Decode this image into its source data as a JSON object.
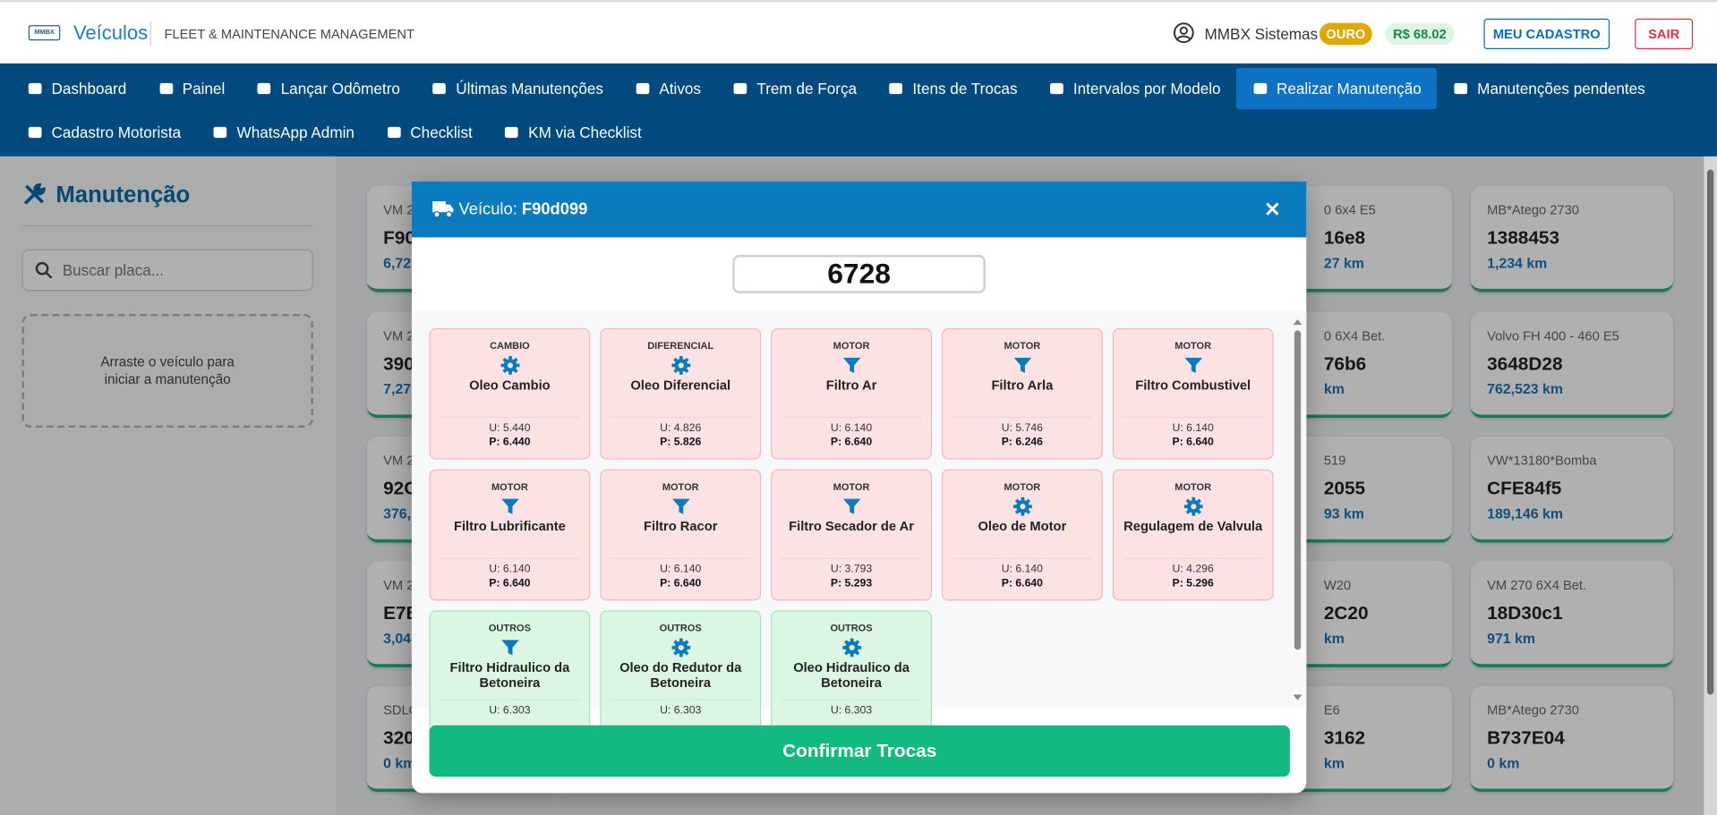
{
  "header": {
    "logo": "MMBX",
    "title": "Veículos",
    "subtitle": "FLEET & MAINTENANCE MANAGEMENT",
    "user": "MMBX Sistemas",
    "tier": "OURO",
    "balance": "R$ 68.02",
    "buttons": [
      "MEU CADASTRO",
      "SAIR"
    ]
  },
  "nav": {
    "active_index": 8,
    "rows": [
      [
        "Dashboard",
        "Painel",
        "Lançar Odômetro",
        "Últimas Manutenções",
        "Ativos",
        "Trem de Força",
        "Itens de Trocas",
        "Intervalos por Modelo",
        "Realizar Manutenção",
        "Manutenções pendentes"
      ],
      [
        "Cadastro Motorista",
        "WhatsApp Admin",
        "Checklist",
        "KM via Checklist"
      ]
    ]
  },
  "sidebar": {
    "title": "Manutenção",
    "search_placeholder": "Buscar placa...",
    "dropzone": "Arraste o veículo para iniciar a manutenção"
  },
  "background_left": [
    {
      "model": "VM 2",
      "plate": "F90",
      "km": "6,72"
    },
    {
      "model": "VM 2",
      "plate": "390",
      "km": "7,27"
    },
    {
      "model": "VM 2",
      "plate": "92C",
      "km": "376,"
    },
    {
      "model": "VM 2",
      "plate": "E7B",
      "km": "3,04"
    },
    {
      "model": "SDLG",
      "plate": "320",
      "km": "0 km"
    }
  ],
  "background_mid": [
    {
      "model": "0 6x4 E5",
      "plate": "16e8",
      "km": "27 km"
    },
    {
      "model": "0 6X4 Bet.",
      "plate": "76b6",
      "km": "km"
    },
    {
      "model": "519",
      "plate": "2055",
      "km": "93 km"
    },
    {
      "model": "W20",
      "plate": "2C20",
      "km": "km"
    },
    {
      "model": "E6",
      "plate": "3162",
      "km": "km"
    }
  ],
  "background_right": [
    {
      "model": "MB*Atego 2730",
      "plate": "1388453",
      "km": "1,234 km"
    },
    {
      "model": "Volvo FH 400 - 460 E5",
      "plate": "3648D28",
      "km": "762,523 km"
    },
    {
      "model": "VW*13180*Bomba",
      "plate": "CFE84f5",
      "km": "189,146 km"
    },
    {
      "model": "VM 270 6X4 Bet.",
      "plate": "18D30c1",
      "km": "971 km"
    },
    {
      "model": "MB*Atego 2730",
      "plate": "B737E04",
      "km": "0 km"
    }
  ],
  "modal": {
    "label": "Veículo:",
    "plate": "F90d099",
    "odometer": "6728",
    "confirm": "Confirmar Trocas",
    "items": [
      {
        "category": "CAMBIO",
        "icon": "gear",
        "name": "Oleo Cambio",
        "last": "U: 5.440",
        "planned": "P: 6.440",
        "color": "#fde2e4"
      },
      {
        "category": "DIFERENCIAL",
        "icon": "gear",
        "name": "Oleo Diferencial",
        "last": "U: 4.826",
        "planned": "P: 5.826",
        "color": "#fde2e4"
      },
      {
        "category": "MOTOR",
        "icon": "filter",
        "name": "Filtro Ar",
        "last": "U: 6.140",
        "planned": "P: 6.640",
        "color": "#fde2e4"
      },
      {
        "category": "MOTOR",
        "icon": "filter",
        "name": "Filtro Arla",
        "last": "U: 5.746",
        "planned": "P: 6.246",
        "color": "#fde2e4"
      },
      {
        "category": "MOTOR",
        "icon": "filter",
        "name": "Filtro Combustivel",
        "last": "U: 6.140",
        "planned": "P: 6.640",
        "color": "#fde2e4"
      },
      {
        "category": "MOTOR",
        "icon": "filter",
        "name": "Filtro Lubrificante",
        "last": "U: 6.140",
        "planned": "P: 6.640",
        "color": "#fde2e4"
      },
      {
        "category": "MOTOR",
        "icon": "filter",
        "name": "Filtro Racor",
        "last": "U: 6.140",
        "planned": "P: 6.640",
        "color": "#fde2e4"
      },
      {
        "category": "MOTOR",
        "icon": "filter",
        "name": "Filtro Secador de Ar",
        "last": "U: 3.793",
        "planned": "P: 5.293",
        "color": "#fde2e4"
      },
      {
        "category": "MOTOR",
        "icon": "gear",
        "name": "Oleo de Motor",
        "last": "U: 6.140",
        "planned": "P: 6.640",
        "color": "#fde2e4"
      },
      {
        "category": "MOTOR",
        "icon": "gear",
        "name": "Regulagem de Valvula",
        "last": "U: 4.296",
        "planned": "P: 5.296",
        "color": "#fde2e4"
      },
      {
        "category": "OUTROS",
        "icon": "filter",
        "name": "Filtro Hidraulico da Betoneira",
        "last": "U: 6.303",
        "color": "#dcf6e4"
      },
      {
        "category": "OUTROS",
        "icon": "gear",
        "name": "Oleo do Redutor da Betoneira",
        "last": "U: 6.303",
        "color": "#dcf6e4"
      },
      {
        "category": "OUTROS",
        "icon": "gear",
        "name": "Oleo Hidraulico da Betoneira",
        "last": "U: 6.303",
        "color": "#dcf6e4"
      }
    ]
  }
}
